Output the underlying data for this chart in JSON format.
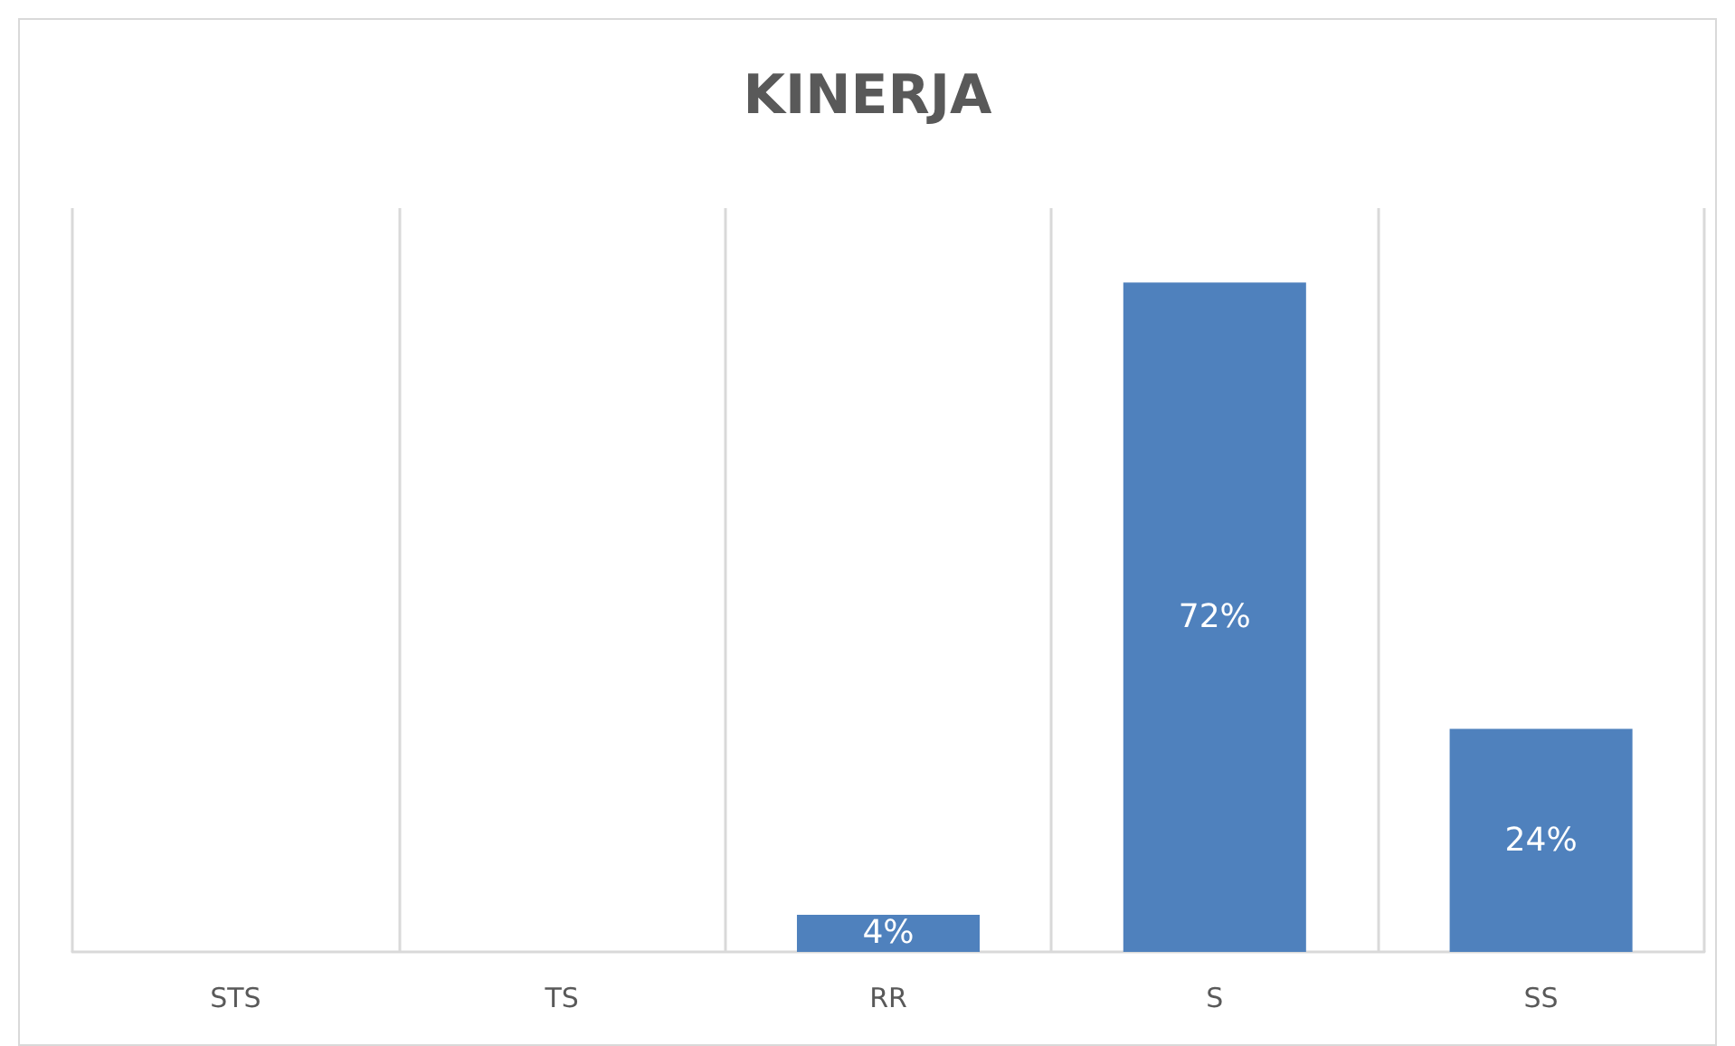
{
  "chart_data": {
    "type": "bar",
    "title": "KINERJA",
    "categories": [
      "STS",
      "TS",
      "RR",
      "S",
      "SS"
    ],
    "values": [
      0,
      0,
      4,
      72,
      24
    ],
    "value_labels": [
      null,
      null,
      "4%",
      "72%",
      "24%"
    ],
    "color": "#4f81bd",
    "grid": "x"
  }
}
